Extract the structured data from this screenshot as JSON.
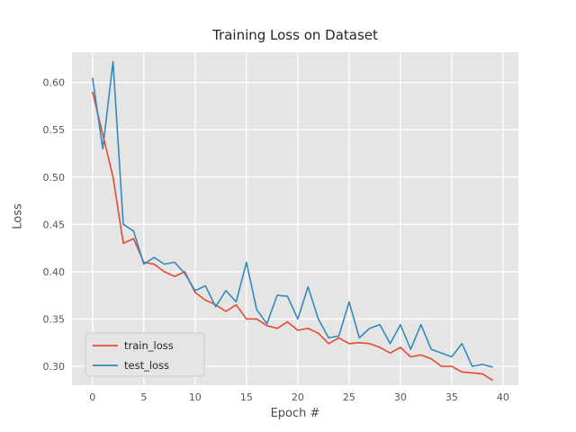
{
  "chart_data": {
    "type": "line",
    "title": "Training Loss on Dataset",
    "xlabel": "Epoch #",
    "ylabel": "Loss",
    "xlim": [
      -2,
      41.5
    ],
    "ylim": [
      0.28,
      0.632
    ],
    "x_ticks": [
      0,
      5,
      10,
      15,
      20,
      25,
      30,
      35,
      40
    ],
    "y_ticks": [
      0.3,
      0.35,
      0.4,
      0.45,
      0.5,
      0.55,
      0.6
    ],
    "grid": true,
    "legend_position": "lower left",
    "plot_bg_color": "#e5e5e5",
    "grid_color": "#ffffff",
    "x": [
      0,
      1,
      2,
      3,
      4,
      5,
      6,
      7,
      8,
      9,
      10,
      11,
      12,
      13,
      14,
      15,
      16,
      17,
      18,
      19,
      20,
      21,
      22,
      23,
      24,
      25,
      26,
      27,
      28,
      29,
      30,
      31,
      32,
      33,
      34,
      35,
      36,
      37,
      38,
      39
    ],
    "series": [
      {
        "name": "train_loss",
        "color": "#E24A33",
        "values": [
          0.59,
          0.545,
          0.5,
          0.43,
          0.435,
          0.41,
          0.408,
          0.4,
          0.395,
          0.4,
          0.378,
          0.37,
          0.365,
          0.358,
          0.365,
          0.35,
          0.35,
          0.343,
          0.34,
          0.347,
          0.338,
          0.34,
          0.335,
          0.324,
          0.33,
          0.324,
          0.325,
          0.324,
          0.32,
          0.314,
          0.32,
          0.31,
          0.312,
          0.308,
          0.3,
          0.3,
          0.294,
          0.293,
          0.292,
          0.285
        ]
      },
      {
        "name": "test_loss",
        "color": "#348ABD",
        "values": [
          0.605,
          0.53,
          0.622,
          0.45,
          0.443,
          0.408,
          0.415,
          0.408,
          0.41,
          0.398,
          0.38,
          0.385,
          0.363,
          0.38,
          0.368,
          0.41,
          0.36,
          0.345,
          0.375,
          0.374,
          0.35,
          0.384,
          0.35,
          0.33,
          0.332,
          0.368,
          0.33,
          0.34,
          0.344,
          0.324,
          0.344,
          0.318,
          0.344,
          0.318,
          0.314,
          0.31,
          0.324,
          0.3,
          0.302,
          0.299
        ]
      }
    ]
  }
}
